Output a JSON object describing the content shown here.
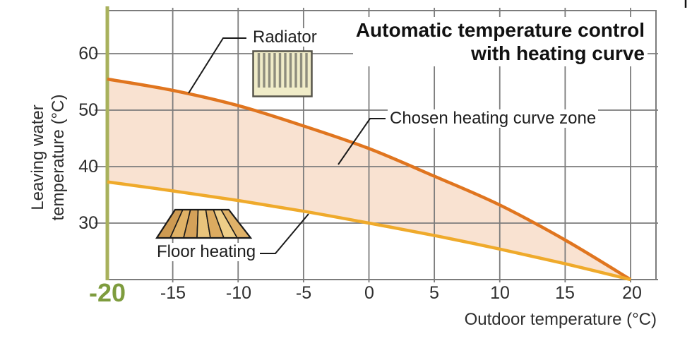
{
  "title": {
    "line1": "Automatic temperature control",
    "line2": "with heating curve"
  },
  "axes": {
    "x_label": "Outdoor temperature (°C)",
    "y_label_line1": "Leaving water",
    "y_label_line2": "temperature (°C)",
    "y_ticks": [
      "60",
      "50",
      "40",
      "30"
    ],
    "x_first_tick": "-20",
    "x_ticks": [
      "-15",
      "-10",
      "-5",
      "0",
      "5",
      "10",
      "15",
      "20"
    ]
  },
  "annotations": {
    "radiator_label": "Radiator",
    "zone_label": "Chosen heating curve zone",
    "floor_label": "Floor heating"
  },
  "icons": {
    "radiator": "radiator-icon",
    "floor_heating": "floor-heating-icon"
  },
  "colors": {
    "curve_upper": "#E0751F",
    "curve_lower": "#EFAA2B",
    "zone_fill": "#F9E2D1",
    "grid": "#7C7C7C",
    "design_axis_line": "#A8B15C",
    "design_tick_text": "#7E9C3E",
    "leader_line": "#1a1a1a"
  },
  "chart_data": {
    "type": "area",
    "title": "Automatic temperature control with heating curve",
    "xlabel": "Outdoor temperature (°C)",
    "ylabel": "Leaving water temperature (°C)",
    "x": [
      -20,
      -15,
      -10,
      -5,
      0,
      5,
      10,
      15,
      20
    ],
    "series": [
      {
        "name": "Radiator (upper heating curve)",
        "color": "#E0751F",
        "values": [
          55.5,
          53.5,
          50.8,
          47.2,
          43.2,
          38.3,
          33.2,
          27.0,
          20.0
        ]
      },
      {
        "name": "Floor heating (lower heating curve)",
        "color": "#EFAA2B",
        "values": [
          37.3,
          35.7,
          34.0,
          32.1,
          30.0,
          27.8,
          25.4,
          22.8,
          20.0
        ]
      }
    ],
    "zone_name": "Chosen heating curve zone",
    "xlim": [
      -20,
      20
    ],
    "ylim_labeled": [
      30,
      60
    ],
    "y_bottom": 20,
    "grid": true,
    "design_outdoor_temperature": -20
  }
}
